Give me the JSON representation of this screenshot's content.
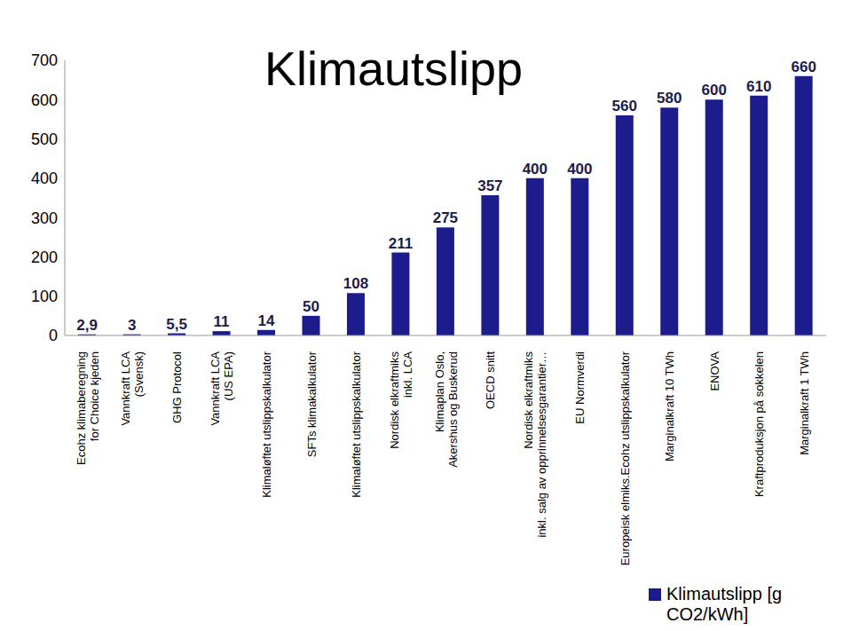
{
  "chart_data": {
    "type": "bar",
    "title": "Klimautslipp",
    "categories": [
      "Ecohz klimaberegning\nfor  Choice kjeden",
      "Vannkraft LCA\n(Svensk)",
      "GHG Protocol",
      "Vannkraft LCA\n(US EPA)",
      "Klimaløftet utslippskalkulator",
      "SFTs klimakalkulator",
      "Klimaløftet utslippskalkulator",
      "Nordisk elkraftmiks\ninkl. LCA",
      "Klimaplan Oslo,\nAkershus og Buskerud",
      "OECD snitt",
      "Nordisk elkraftmiks\ninkl. salg av opprinnelsesgarantier…",
      "EU Normverdi",
      "Europeisk elmiks.Ecohz utslippskalkulator",
      "Marginalkraft 10 TWh",
      "ENOVA",
      "Kraftproduksjon på sokkelen",
      "Marginalkraft 1 TWh"
    ],
    "series": [
      {
        "name": "Klimautslipp [g CO2/kWh]",
        "color": "#1c1c8c",
        "values": [
          2.9,
          3,
          5.5,
          11,
          14,
          50,
          108,
          211,
          275,
          357,
          400,
          400,
          560,
          580,
          600,
          610,
          660
        ],
        "value_labels": [
          "2,9",
          "3",
          "5,5",
          "11",
          "14",
          "50",
          "108",
          "211",
          "275",
          "357",
          "400",
          "400",
          "560",
          "580",
          "600",
          "610",
          "660"
        ]
      }
    ],
    "ylim": [
      0,
      700
    ],
    "yticks": [
      0,
      100,
      200,
      300,
      400,
      500,
      600,
      700
    ],
    "data_labels": true,
    "grid": false,
    "legend": "lower right"
  }
}
